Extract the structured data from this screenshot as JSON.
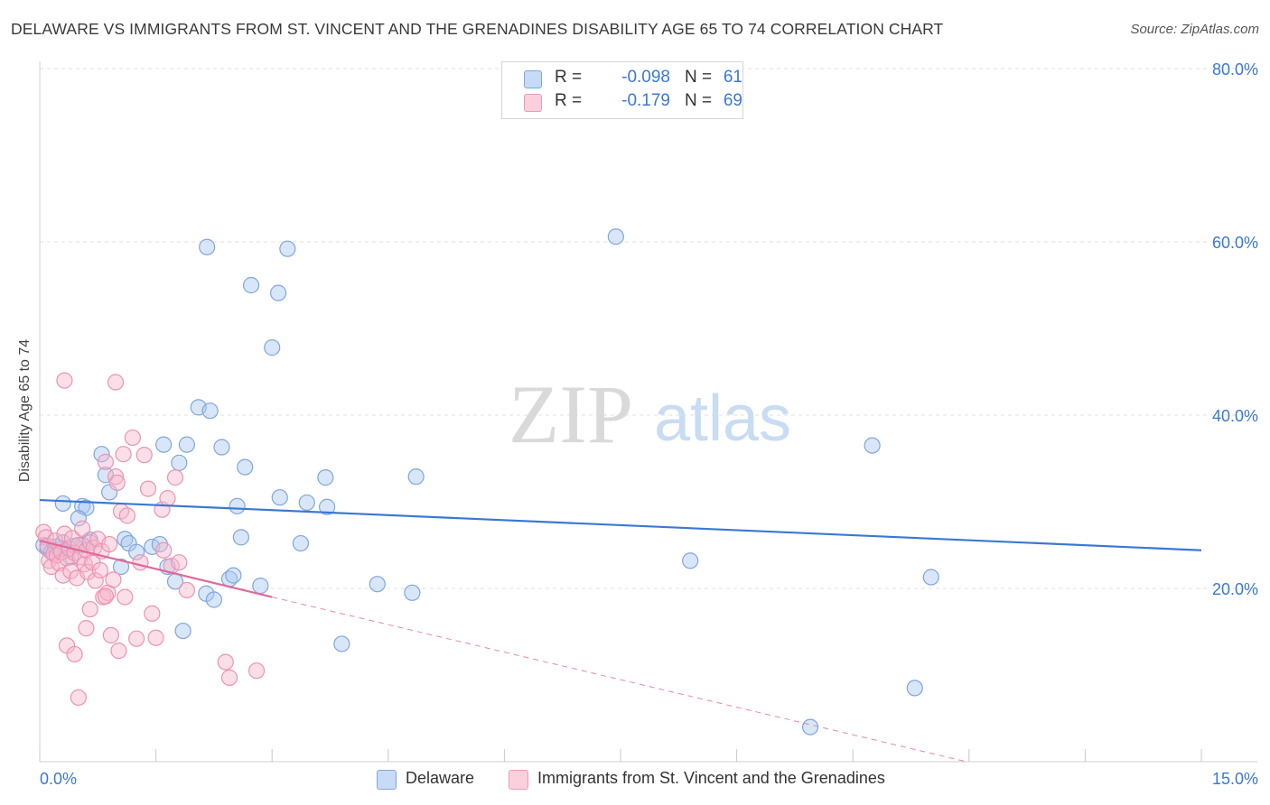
{
  "title": "DELAWARE VS IMMIGRANTS FROM ST. VINCENT AND THE GRENADINES DISABILITY AGE 65 TO 74 CORRELATION CHART",
  "source": "Source: ZipAtlas.com",
  "watermark": {
    "zip": "ZIP",
    "atlas": "atlas"
  },
  "legend": {
    "r_label": "R =",
    "n_label": "N =",
    "rows": [
      {
        "r": "-0.098",
        "n": "61",
        "color": "#aac8f0"
      },
      {
        "r": "-0.179",
        "n": "69",
        "color": "#f6b8cb"
      }
    ]
  },
  "bottom_legend": [
    "Delaware",
    "Immigrants from St. Vincent and the Grenadines"
  ],
  "chart_data": {
    "type": "scatter",
    "ylabel": "Disability Age 65 to 74",
    "xlabel": "",
    "xlim": [
      0,
      15
    ],
    "ylim": [
      0,
      80
    ],
    "x_tick_labels": [
      "0.0%",
      "15.0%"
    ],
    "y_tick_labels": [
      "20.0%",
      "40.0%",
      "60.0%",
      "80.0%"
    ],
    "y_ticks": [
      20,
      40,
      60,
      80
    ],
    "grid": true,
    "colors": {
      "blue": "#3a78d4",
      "blue_fill": "#aac8f0",
      "pink": "#e0699a",
      "pink_fill": "#f6b8cb",
      "axis_text": "#3a78d4"
    },
    "series": [
      {
        "name": "Delaware",
        "color": "blue",
        "trend": {
          "x": [
            0,
            15
          ],
          "y": [
            30.2,
            24.4
          ],
          "dashed_to": null
        },
        "points": [
          [
            0.05,
            25.0
          ],
          [
            0.1,
            24.6
          ],
          [
            0.15,
            24.2
          ],
          [
            0.2,
            24.8
          ],
          [
            0.25,
            24.5
          ],
          [
            0.3,
            25.3
          ],
          [
            0.35,
            24.4
          ],
          [
            0.4,
            23.6
          ],
          [
            0.45,
            24.9
          ],
          [
            0.3,
            29.8
          ],
          [
            0.55,
            29.5
          ],
          [
            0.6,
            29.3
          ],
          [
            0.5,
            28.1
          ],
          [
            0.85,
            33.1
          ],
          [
            0.9,
            31.1
          ],
          [
            0.8,
            35.5
          ],
          [
            0.65,
            25.6
          ],
          [
            0.55,
            25.0
          ],
          [
            1.1,
            25.7
          ],
          [
            1.15,
            25.2
          ],
          [
            1.05,
            22.5
          ],
          [
            1.25,
            24.2
          ],
          [
            1.45,
            24.8
          ],
          [
            1.55,
            25.1
          ],
          [
            1.65,
            22.5
          ],
          [
            1.75,
            20.8
          ],
          [
            1.85,
            15.1
          ],
          [
            1.6,
            36.6
          ],
          [
            1.8,
            34.5
          ],
          [
            1.9,
            36.6
          ],
          [
            2.05,
            40.9
          ],
          [
            2.2,
            40.5
          ],
          [
            2.35,
            36.3
          ],
          [
            2.15,
            19.4
          ],
          [
            2.25,
            18.7
          ],
          [
            2.45,
            21.1
          ],
          [
            2.5,
            21.5
          ],
          [
            2.6,
            25.9
          ],
          [
            2.65,
            34.0
          ],
          [
            2.55,
            29.5
          ],
          [
            2.85,
            20.3
          ],
          [
            2.16,
            59.4
          ],
          [
            2.73,
            55.0
          ],
          [
            3.08,
            54.1
          ],
          [
            3.2,
            59.2
          ],
          [
            3.0,
            47.8
          ],
          [
            3.1,
            30.5
          ],
          [
            3.37,
            25.2
          ],
          [
            3.45,
            29.9
          ],
          [
            3.71,
            29.4
          ],
          [
            3.69,
            32.8
          ],
          [
            3.9,
            13.6
          ],
          [
            4.36,
            20.5
          ],
          [
            4.81,
            19.5
          ],
          [
            4.86,
            32.9
          ],
          [
            7.44,
            60.6
          ],
          [
            8.4,
            23.2
          ],
          [
            9.95,
            4.0
          ],
          [
            10.75,
            36.5
          ],
          [
            11.3,
            8.5
          ],
          [
            11.51,
            21.3
          ]
        ]
      },
      {
        "name": "Immigrants from St. Vincent and the Grenadines",
        "color": "pink",
        "trend": {
          "x": [
            0,
            3.0
          ],
          "y": [
            25.5,
            19.0
          ],
          "dashed_to": [
            15,
            0
          ]
        },
        "points": [
          [
            0.05,
            26.5
          ],
          [
            0.08,
            25.9
          ],
          [
            0.1,
            24.9
          ],
          [
            0.12,
            23.2
          ],
          [
            0.15,
            22.5
          ],
          [
            0.18,
            24.0
          ],
          [
            0.2,
            25.5
          ],
          [
            0.22,
            23.8
          ],
          [
            0.25,
            22.9
          ],
          [
            0.28,
            24.2
          ],
          [
            0.3,
            21.5
          ],
          [
            0.32,
            26.3
          ],
          [
            0.35,
            23.5
          ],
          [
            0.38,
            24.6
          ],
          [
            0.4,
            22.0
          ],
          [
            0.42,
            25.8
          ],
          [
            0.45,
            24.1
          ],
          [
            0.48,
            21.2
          ],
          [
            0.5,
            25.0
          ],
          [
            0.52,
            23.6
          ],
          [
            0.55,
            26.9
          ],
          [
            0.58,
            22.8
          ],
          [
            0.6,
            24.4
          ],
          [
            0.62,
            21.9
          ],
          [
            0.65,
            25.3
          ],
          [
            0.68,
            23.0
          ],
          [
            0.7,
            24.7
          ],
          [
            0.72,
            20.9
          ],
          [
            0.75,
            25.7
          ],
          [
            0.78,
            22.1
          ],
          [
            0.8,
            24.3
          ],
          [
            0.82,
            19.0
          ],
          [
            0.85,
            34.6
          ],
          [
            0.88,
            19.5
          ],
          [
            0.9,
            25.1
          ],
          [
            0.92,
            14.6
          ],
          [
            0.95,
            21.0
          ],
          [
            0.98,
            32.9
          ],
          [
            1.0,
            32.2
          ],
          [
            1.05,
            28.9
          ],
          [
            1.08,
            35.5
          ],
          [
            0.32,
            44.0
          ],
          [
            0.98,
            43.8
          ],
          [
            0.35,
            13.4
          ],
          [
            0.45,
            12.4
          ],
          [
            0.5,
            7.4
          ],
          [
            0.6,
            15.4
          ],
          [
            0.65,
            17.6
          ],
          [
            0.85,
            19.1
          ],
          [
            1.02,
            12.8
          ],
          [
            1.1,
            19.0
          ],
          [
            1.13,
            28.4
          ],
          [
            1.2,
            37.4
          ],
          [
            1.25,
            14.2
          ],
          [
            1.3,
            23.0
          ],
          [
            1.35,
            35.4
          ],
          [
            1.4,
            31.5
          ],
          [
            1.45,
            17.1
          ],
          [
            1.5,
            14.3
          ],
          [
            1.58,
            29.1
          ],
          [
            1.6,
            24.4
          ],
          [
            1.65,
            30.4
          ],
          [
            1.7,
            22.6
          ],
          [
            1.75,
            32.8
          ],
          [
            1.8,
            23.0
          ],
          [
            1.9,
            19.8
          ],
          [
            2.4,
            11.5
          ],
          [
            2.45,
            9.7
          ],
          [
            2.8,
            10.5
          ]
        ]
      }
    ]
  }
}
